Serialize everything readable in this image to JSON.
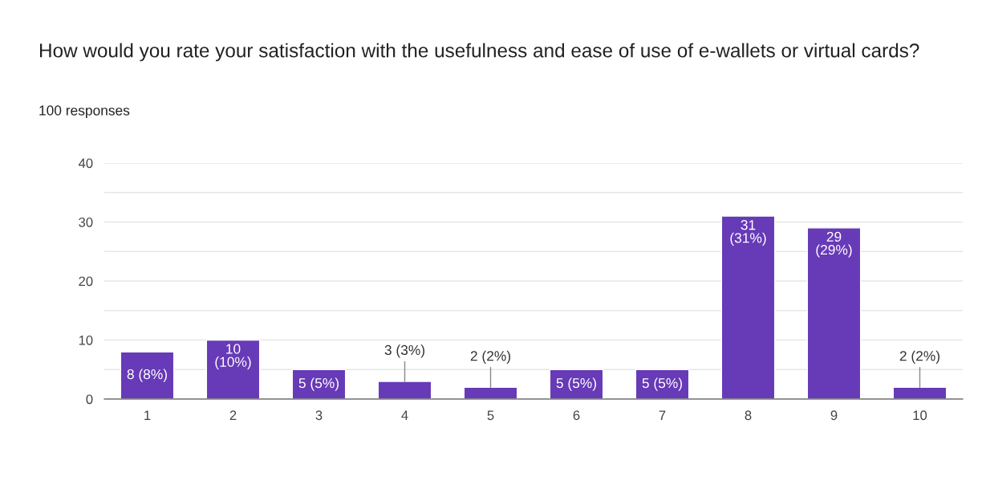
{
  "chart_data": {
    "type": "bar",
    "title": "How would you rate your satisfaction with the usefulness and ease of use of e-wallets or virtual cards?",
    "subtitle": "100 responses",
    "categories": [
      "1",
      "2",
      "3",
      "4",
      "5",
      "6",
      "7",
      "8",
      "9",
      "10"
    ],
    "values": [
      8,
      10,
      5,
      3,
      2,
      5,
      5,
      31,
      29,
      2
    ],
    "value_labels": [
      "8 (8%)",
      "10 (10%)",
      "5 (5%)",
      "3 (3%)",
      "2 (2%)",
      "5 (5%)",
      "5 (5%)",
      "31 (31%)",
      "29 (29%)",
      "2 (2%)"
    ],
    "color": "#673ab7",
    "ylim": [
      0,
      40
    ],
    "yticks": [
      0,
      {
        "value": 5,
        "label": null
      },
      10,
      {
        "value": 15,
        "label": null
      },
      20,
      {
        "value": 25,
        "label": null
      },
      30,
      {
        "value": 35,
        "label": null
      },
      40
    ],
    "grid": "y"
  }
}
